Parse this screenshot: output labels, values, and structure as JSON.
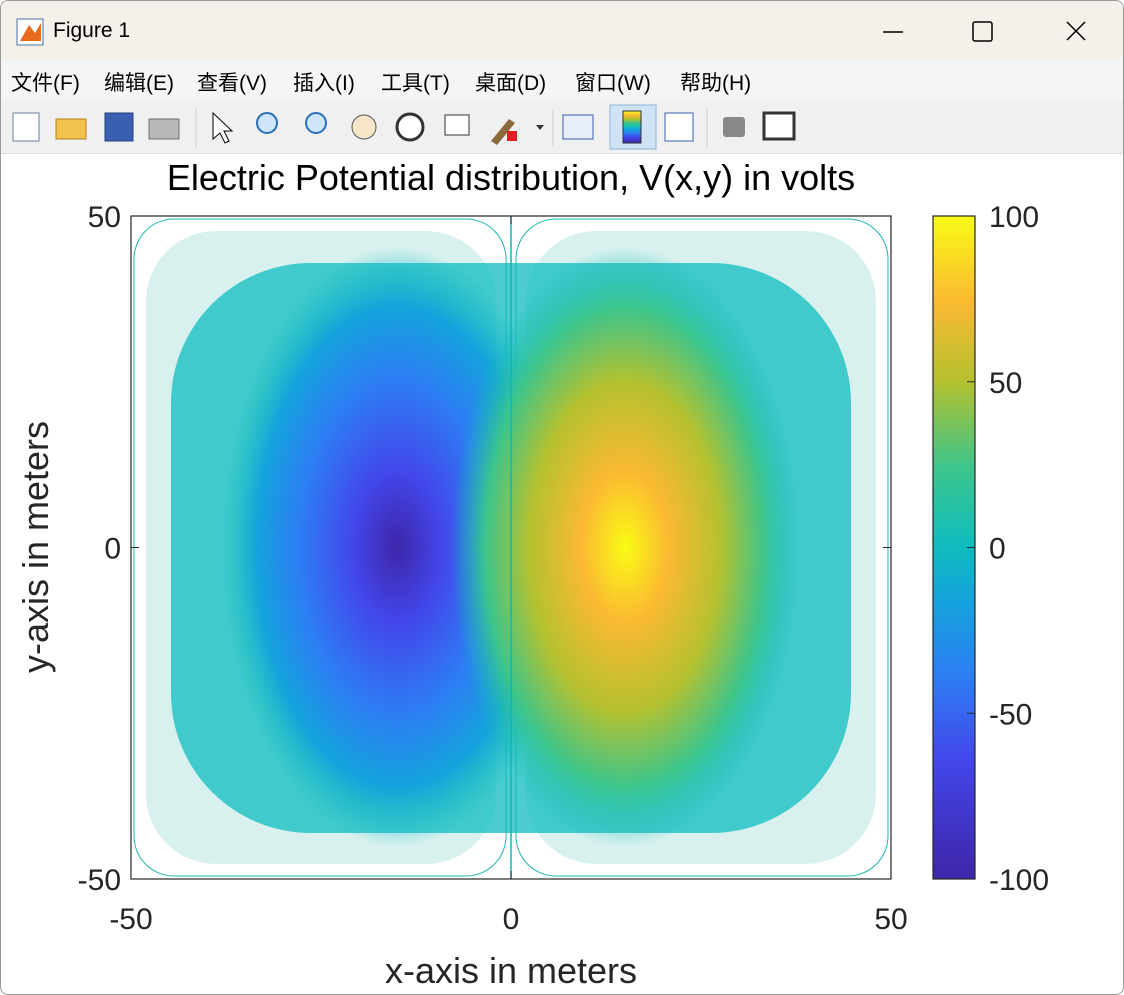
{
  "window": {
    "title": "Figure 1",
    "menu": [
      "文件(F)",
      "编辑(E)",
      "查看(V)",
      "插入(I)",
      "工具(T)",
      "桌面(D)",
      "窗口(W)",
      "帮助(H)"
    ]
  },
  "chart_data": {
    "type": "contour",
    "title": "Electric Potential distribution, V(x,y) in volts",
    "x_label": "x-axis in meters",
    "y_label": "y-axis in meters",
    "xlim": [
      -50,
      50
    ],
    "ylim": [
      -50,
      50
    ],
    "xticks": [
      -50,
      0,
      50
    ],
    "yticks": [
      -50,
      0,
      50
    ],
    "colorbar": {
      "lim": [
        -100,
        100
      ],
      "ticks": [
        -100,
        -50,
        0,
        50,
        100
      ]
    }
  }
}
